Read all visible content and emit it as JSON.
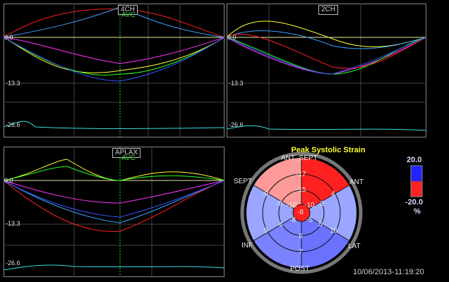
{
  "views": {
    "ch4": {
      "label": "4CH",
      "avc_label": "AVC",
      "ticks": [
        "0.0",
        "-13.3",
        "-26.6"
      ]
    },
    "ch2": {
      "label": "2CH",
      "ticks": [
        "0.0",
        "-13.3",
        "-26.6"
      ]
    },
    "aplax": {
      "label": "APLAX",
      "avc_label": "AVC",
      "ticks": [
        "0.0",
        "-13.3",
        "-26.6"
      ]
    }
  },
  "bullseye": {
    "title": "Peak Systolic Strain",
    "walls": {
      "sept": "SEPT",
      "ant_sept": "ANT_SEPT",
      "ant": "ANT",
      "lat": "LAT",
      "post": "POST",
      "inf": "INF"
    },
    "segments": {
      "basal": [
        "-17",
        "4",
        "10",
        "7",
        "5",
        "-9"
      ],
      "mid": [
        "-15",
        "3",
        "5",
        "6",
        "4",
        "-9"
      ],
      "apical": [
        "-10",
        "-5",
        "-8",
        "-10"
      ],
      "apex": "-8"
    },
    "segment_colors": {
      "neg_strong": "#ff2020",
      "neg_mid": "#ff5a5a",
      "neg_light": "#ff9a9a",
      "pos_light": "#9aa6ff",
      "pos_mid": "#6a72ff"
    }
  },
  "legend": {
    "max": "20.0",
    "min": "-20.0",
    "unit": "%"
  },
  "timestamp": "10/06/2013-11:19:20",
  "colors": {
    "avc": "#39d639",
    "grid": "#555555",
    "baseline": "#e8e8a0"
  }
}
